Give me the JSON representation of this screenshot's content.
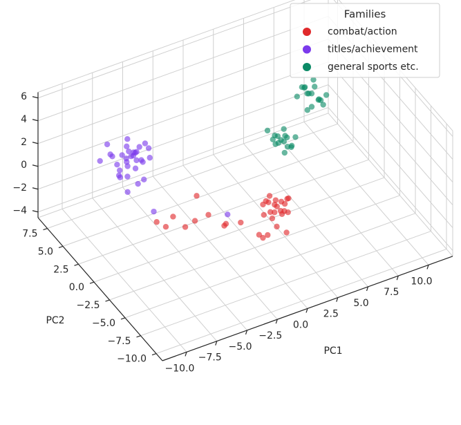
{
  "chart_data": {
    "type": "scatter3d",
    "xlabel": "PC1",
    "ylabel": "PC2",
    "xlim": [
      -12,
      12
    ],
    "ylim": [
      -11,
      9
    ],
    "zlim": [
      -4.5,
      6.5
    ],
    "xticks": [
      {
        "value": -10,
        "label": "−10.0"
      },
      {
        "value": -7.5,
        "label": "−7.5"
      },
      {
        "value": -5,
        "label": "−5.0"
      },
      {
        "value": -2.5,
        "label": "−2.5"
      },
      {
        "value": 0,
        "label": "0.0"
      },
      {
        "value": 2.5,
        "label": "2.5"
      },
      {
        "value": 5,
        "label": "5.0"
      },
      {
        "value": 7.5,
        "label": "7.5"
      },
      {
        "value": 10,
        "label": "10.0"
      }
    ],
    "yticks": [
      {
        "value": -10,
        "label": "−10.0"
      },
      {
        "value": -7.5,
        "label": "−7.5"
      },
      {
        "value": -5,
        "label": "−5.0"
      },
      {
        "value": -2.5,
        "label": "−2.5"
      },
      {
        "value": 0,
        "label": "0.0"
      },
      {
        "value": 2.5,
        "label": "2.5"
      },
      {
        "value": 5,
        "label": "5.0"
      },
      {
        "value": 7.5,
        "label": "7.5"
      }
    ],
    "zticks": [
      {
        "value": -4,
        "label": "−4"
      },
      {
        "value": -2,
        "label": "−2"
      },
      0,
      2,
      4,
      6
    ],
    "grid": true,
    "legend_title": "Families",
    "legend_loc": "upper right",
    "series": [
      {
        "name": "combat/action",
        "color": "#e0292b",
        "x": [
          2.1,
          1.6,
          2.5,
          1.9,
          2.8,
          1.4,
          2.3,
          1.8,
          2.6,
          2.0,
          1.2,
          2.9,
          1.7,
          2.4,
          2.2,
          1.5,
          3.1,
          2.0,
          -5.7,
          -5.0,
          -4.3,
          -6.2,
          -3.6,
          -2.8,
          -1.9,
          -1.0,
          -0.5,
          0.2,
          0.8,
          -0.2,
          1.4,
          0.5,
          -1.5,
          -3.0
        ],
        "y": [
          -2.0,
          -1.6,
          -2.4,
          -1.2,
          -1.9,
          -2.6,
          -1.4,
          -2.2,
          -2.8,
          -1.8,
          -1.5,
          -2.3,
          -1.0,
          -2.0,
          -2.5,
          -2.1,
          -1.7,
          -3.0,
          0.7,
          0.9,
          0.3,
          1.2,
          0.1,
          -0.5,
          -1.3,
          -2.2,
          -4.8,
          -4.2,
          -4.5,
          -3.6,
          -4.9,
          -3.0,
          -0.8,
          1.0
        ],
        "z": [
          -2.0,
          -1.7,
          -2.3,
          -1.5,
          -2.1,
          -2.4,
          -1.9,
          -1.6,
          -2.2,
          -2.6,
          -1.8,
          -1.4,
          -2.0,
          -2.5,
          -1.3,
          -2.2,
          -1.9,
          -2.0,
          -2.5,
          -2.0,
          -2.8,
          -2.2,
          -2.4,
          -1.8,
          -2.6,
          -2.1,
          -2.0,
          -2.4,
          -1.7,
          -2.6,
          -2.2,
          -1.5,
          -2.9,
          -1.0
        ]
      },
      {
        "name": "titles/achievement",
        "color": "#7b3aec",
        "x": [
          -6.2,
          -5.5,
          -6.8,
          -5.9,
          -7.1,
          -4.9,
          -6.4,
          -5.2,
          -6.9,
          -5.7,
          -6.1,
          -7.4,
          -4.6,
          -5.8,
          -6.6,
          -5.3,
          -6.0,
          -7.8,
          -4.3,
          -6.3,
          -5.6,
          -6.9,
          -5.1,
          -6.5,
          -7.2,
          -5.0,
          -6.1,
          -5.4,
          -7.0,
          -4.8,
          -6.7,
          -5.9,
          -5.0,
          -0.7
        ],
        "y": [
          6.1,
          5.8,
          6.4,
          5.5,
          6.9,
          6.2,
          5.3,
          6.6,
          5.9,
          7.0,
          4.8,
          6.0,
          5.6,
          6.8,
          5.1,
          5.0,
          6.3,
          7.2,
          6.0,
          5.7,
          4.6,
          5.4,
          7.1,
          6.5,
          5.2,
          5.4,
          4.4,
          6.0,
          7.6,
          6.7,
          4.9,
          5.9,
          4.0,
          0.5
        ],
        "z": [
          0.3,
          0.8,
          -0.2,
          1.1,
          0.5,
          -0.4,
          1.5,
          0.1,
          -0.8,
          0.6,
          0.2,
          1.0,
          0.9,
          -0.6,
          0.4,
          -1.2,
          1.8,
          0.0,
          -0.3,
          -1.0,
          0.7,
          1.3,
          -0.5,
          -1.5,
          0.2,
          1.6,
          -0.9,
          -0.1,
          0.9,
          0.4,
          -1.7,
          0.5,
          -3.5,
          -3.2
        ]
      },
      {
        "name": "general sports etc.",
        "color": "#0b8a66",
        "x": [
          3.6,
          3.1,
          4.0,
          3.3,
          3.9,
          2.8,
          4.3,
          3.5,
          3.0,
          4.1,
          3.7,
          3.2,
          4.5,
          3.4,
          2.6,
          3.8,
          6.1,
          5.7,
          6.5,
          5.9,
          6.8,
          5.4,
          6.3,
          6.0,
          6.6,
          5.6,
          6.2,
          7.0,
          5.8,
          6.4,
          5.2,
          6.9
        ],
        "y": [
          -0.2,
          0.3,
          -0.6,
          0.1,
          0.4,
          -0.4,
          -0.1,
          0.6,
          -0.9,
          0.2,
          -0.5,
          0.8,
          -0.3,
          -0.7,
          0.5,
          0.0,
          0.2,
          0.6,
          -0.2,
          0.9,
          0.1,
          0.4,
          -0.5,
          0.0,
          0.7,
          -0.3,
          1.1,
          -0.4,
          0.3,
          0.5,
          0.8,
          -0.1
        ],
        "z": [
          2.0,
          2.4,
          1.6,
          1.8,
          2.6,
          2.2,
          1.3,
          2.0,
          2.8,
          1.1,
          2.5,
          1.7,
          2.1,
          1.4,
          2.9,
          2.3,
          5.0,
          5.4,
          4.6,
          5.2,
          4.2,
          5.7,
          4.8,
          4.0,
          5.1,
          5.5,
          4.4,
          4.9,
          3.6,
          5.9,
          4.7,
          3.9
        ]
      }
    ]
  }
}
